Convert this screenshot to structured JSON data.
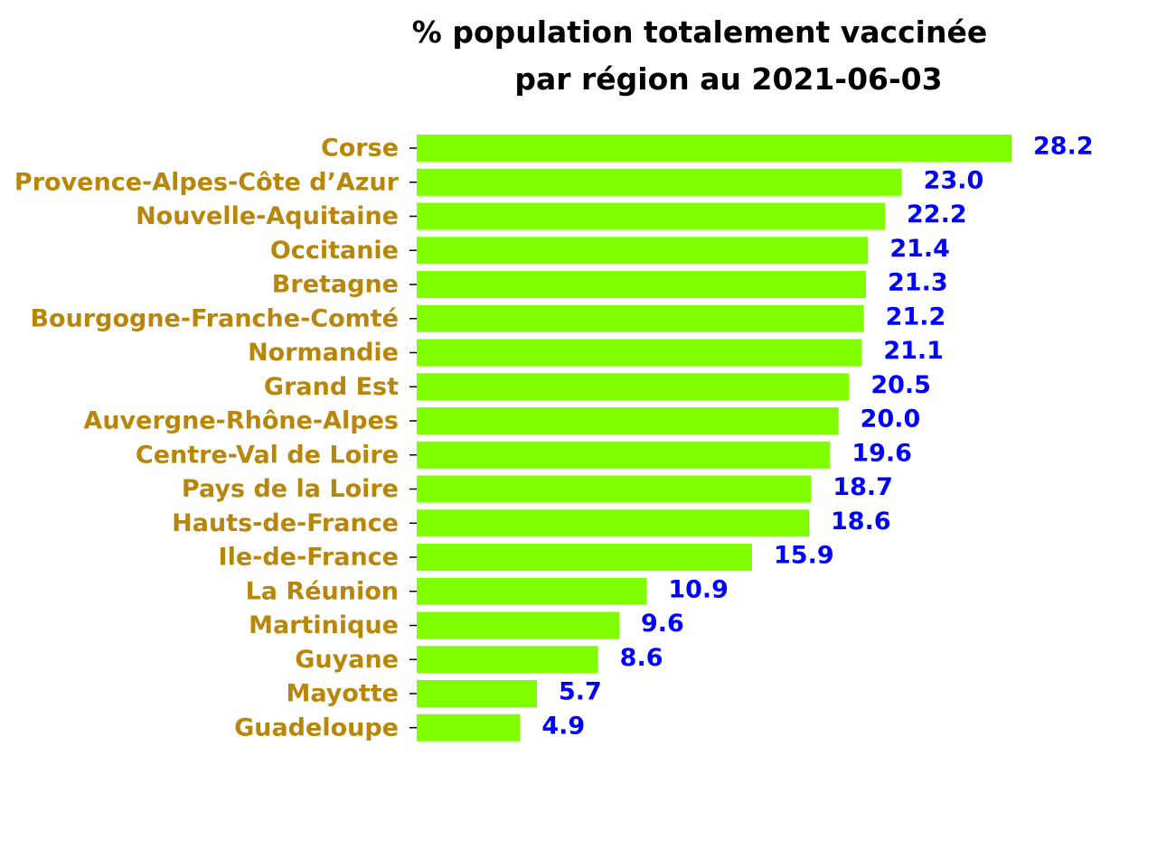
{
  "chart_data": {
    "type": "bar",
    "orientation": "horizontal",
    "title": [
      "% population totalement vaccinée",
      "par région au 2021-06-03"
    ],
    "categories": [
      "Corse",
      "Provence-Alpes-Côte d’Azur",
      "Nouvelle-Aquitaine",
      "Occitanie",
      "Bretagne",
      "Bourgogne-Franche-Comté",
      "Normandie",
      "Grand Est",
      "Auvergne-Rhône-Alpes",
      "Centre-Val de Loire",
      "Pays de la Loire",
      "Hauts-de-France",
      "Ile-de-France",
      "La Réunion",
      "Martinique",
      "Guyane",
      "Mayotte",
      "Guadeloupe"
    ],
    "values": [
      28.2,
      23.0,
      22.2,
      21.4,
      21.3,
      21.2,
      21.1,
      20.5,
      20.0,
      19.6,
      18.7,
      18.6,
      15.9,
      10.9,
      9.6,
      8.6,
      5.7,
      4.9
    ],
    "value_labels": [
      "28.2",
      "23.0",
      "22.2",
      "21.4",
      "21.3",
      "21.2",
      "21.1",
      "20.5",
      "20.0",
      "19.6",
      "18.7",
      "18.6",
      "15.9",
      "10.9",
      "9.6",
      "8.6",
      "5.7",
      "4.9"
    ],
    "xlim": [
      0,
      28.2
    ],
    "xlabel": "",
    "ylabel": "",
    "grid": false,
    "x_axis_visible": false,
    "colors": {
      "bar": "#7fff00",
      "category_label": "#b8860b",
      "value_label": "#0000ff",
      "title": "#000000"
    }
  }
}
